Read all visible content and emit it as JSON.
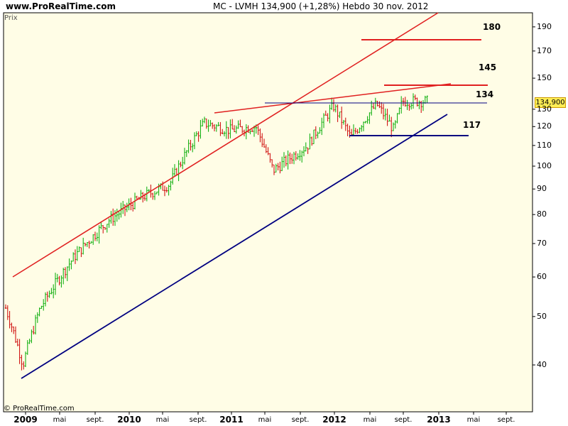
{
  "header": {
    "site": "www.ProRealTime.com",
    "title": "MC - LVMH    134,900 (+1,28%)    Hebdo  30 nov. 2012"
  },
  "prix_label": "Prix",
  "copyright": "© ProRealTime.com",
  "current_price_label": "134,900",
  "annotations": [
    "180",
    "145",
    "134",
    "117"
  ],
  "colors": {
    "background": "#fffde6",
    "up_bar": "#00aa00",
    "down_bar": "#cc0000",
    "resistance_line": "#e02020",
    "support_line": "#000080",
    "current_price_bg": "#ffee55"
  },
  "chart_data": {
    "type": "ohlc",
    "scale": "log",
    "ylim": [
      34,
      200
    ],
    "y_ticks": [
      40,
      50,
      60,
      70,
      80,
      90,
      100,
      110,
      120,
      130,
      150,
      170,
      190
    ],
    "x_ticks": [
      {
        "label": "2009",
        "bold": true
      },
      {
        "label": "mai",
        "bold": false
      },
      {
        "label": "sept.",
        "bold": false
      },
      {
        "label": "2010",
        "bold": true
      },
      {
        "label": "mai",
        "bold": false
      },
      {
        "label": "sept.",
        "bold": false
      },
      {
        "label": "2011",
        "bold": true
      },
      {
        "label": "mai",
        "bold": false
      },
      {
        "label": "sept.",
        "bold": false
      },
      {
        "label": "2012",
        "bold": true
      },
      {
        "label": "mai",
        "bold": false
      },
      {
        "label": "sept.",
        "bold": false
      },
      {
        "label": "2013",
        "bold": true
      },
      {
        "label": "mai",
        "bold": false
      },
      {
        "label": "sept.",
        "bold": false
      }
    ],
    "last_price": 134.9,
    "change_pct": 1.28,
    "timeframe": "Hebdo",
    "date": "30 nov. 2012",
    "price_path_approx": [
      {
        "date": "2009-01",
        "price": 52
      },
      {
        "date": "2009-03",
        "price": 40
      },
      {
        "date": "2009-05",
        "price": 52
      },
      {
        "date": "2009-09",
        "price": 66
      },
      {
        "date": "2010-01",
        "price": 78
      },
      {
        "date": "2010-05",
        "price": 87
      },
      {
        "date": "2010-08",
        "price": 92
      },
      {
        "date": "2010-12",
        "price": 122
      },
      {
        "date": "2011-03",
        "price": 118
      },
      {
        "date": "2011-06",
        "price": 120
      },
      {
        "date": "2011-08",
        "price": 98
      },
      {
        "date": "2011-12",
        "price": 110
      },
      {
        "date": "2012-03",
        "price": 132
      },
      {
        "date": "2012-05",
        "price": 114
      },
      {
        "date": "2012-08",
        "price": 133
      },
      {
        "date": "2012-10",
        "price": 118
      },
      {
        "date": "2012-11",
        "price": 134.9
      }
    ],
    "levels": [
      180,
      145,
      134,
      117
    ]
  }
}
